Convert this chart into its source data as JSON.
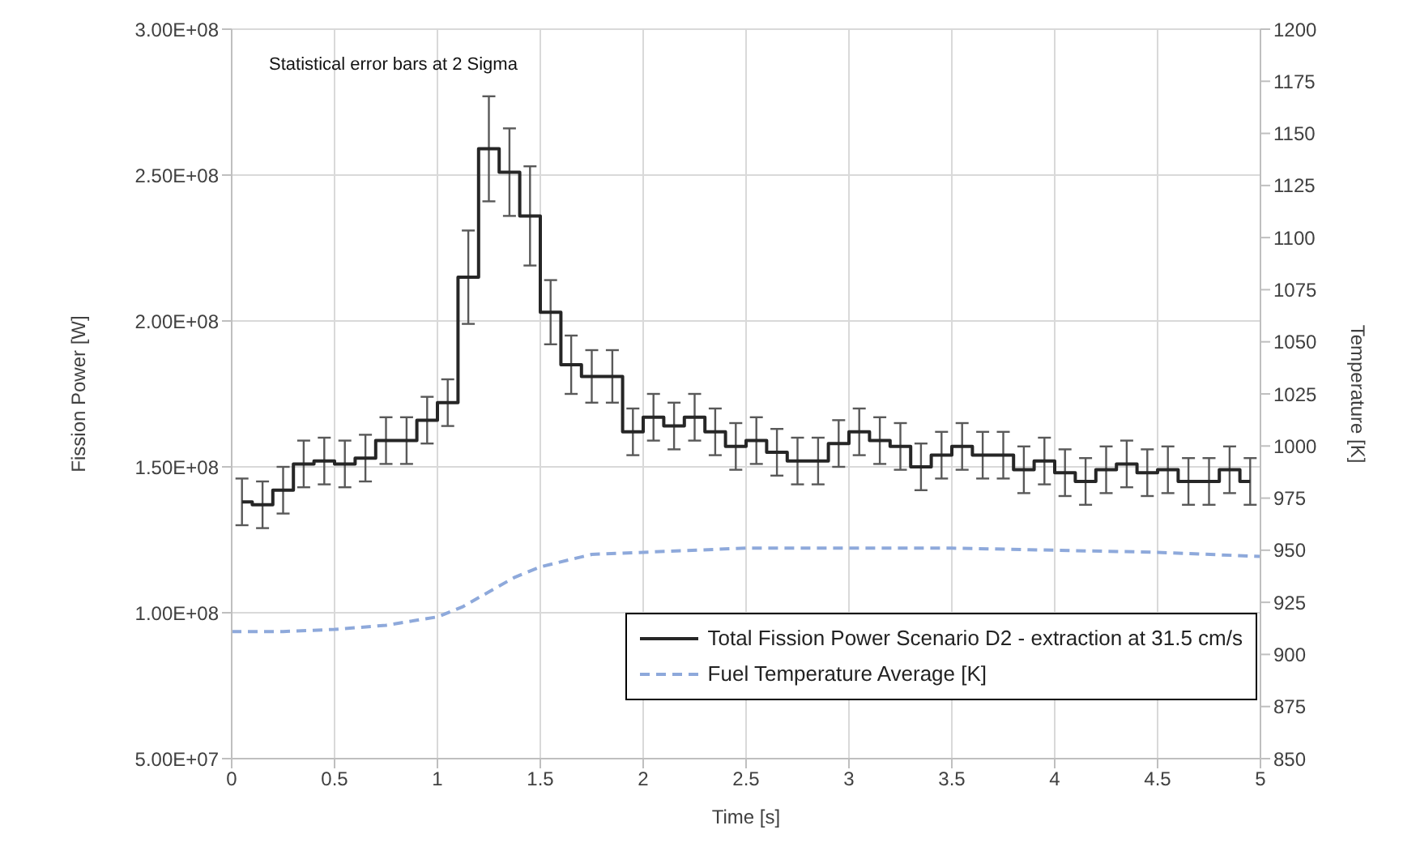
{
  "chart_data": {
    "type": "step",
    "xlabel": "Time [s]",
    "ylabel": "Fission Power [W]",
    "y2label": "Temperature [K]",
    "annotations": [
      "Statistical error bars at 2 Sigma"
    ],
    "x": [
      0.05,
      0.15,
      0.25,
      0.35,
      0.45,
      0.55,
      0.65,
      0.75,
      0.85,
      0.95,
      1.05,
      1.15,
      1.25,
      1.35,
      1.45,
      1.55,
      1.65,
      1.75,
      1.85,
      1.95,
      2.05,
      2.15,
      2.25,
      2.35,
      2.45,
      2.55,
      2.65,
      2.75,
      2.85,
      2.95,
      3.05,
      3.15,
      3.25,
      3.35,
      3.45,
      3.55,
      3.65,
      3.75,
      3.85,
      3.95,
      4.05,
      4.15,
      4.25,
      4.35,
      4.45,
      4.55,
      4.65,
      4.75,
      4.85,
      4.95
    ],
    "series": [
      {
        "name": "Total Fission Power Scenario D2 - extraction at 31.5 cm/s",
        "color": "#262626",
        "values": [
          138000000,
          137000000,
          142000000,
          151000000,
          152000000,
          151000000,
          153000000,
          159000000,
          159000000,
          166000000,
          172000000,
          215000000,
          259000000,
          251000000,
          236000000,
          203000000,
          185000000,
          181000000,
          181000000,
          162000000,
          167000000,
          164000000,
          167000000,
          162000000,
          157000000,
          159000000,
          155000000,
          152000000,
          152000000,
          158000000,
          162000000,
          159000000,
          157000000,
          150000000,
          154000000,
          157000000,
          154000000,
          154000000,
          149000000,
          152000000,
          148000000,
          145000000,
          149000000,
          151000000,
          148000000,
          149000000,
          145000000,
          145000000,
          149000000,
          145000000
        ],
        "errors": [
          8000000,
          8000000,
          8000000,
          8000000,
          8000000,
          8000000,
          8000000,
          8000000,
          8000000,
          8000000,
          8000000,
          16000000,
          18000000,
          15000000,
          17000000,
          11000000,
          10000000,
          9000000,
          9000000,
          8000000,
          8000000,
          8000000,
          8000000,
          8000000,
          8000000,
          8000000,
          8000000,
          8000000,
          8000000,
          8000000,
          8000000,
          8000000,
          8000000,
          8000000,
          8000000,
          8000000,
          8000000,
          8000000,
          8000000,
          8000000,
          8000000,
          8000000,
          8000000,
          8000000,
          8000000,
          8000000,
          8000000,
          8000000,
          8000000,
          8000000
        ]
      },
      {
        "name": "Fuel Temperature Average [K]",
        "type": "line",
        "axis": "y2",
        "color": "#8ea9db",
        "line_style": "dashed",
        "x": [
          0,
          0.25,
          0.5,
          0.75,
          1,
          1.125,
          1.25,
          1.375,
          1.5,
          1.75,
          2,
          2.5,
          3,
          3.5,
          4,
          4.5,
          5
        ],
        "values": [
          911,
          911,
          912,
          914,
          918,
          923,
          930,
          937,
          942,
          948,
          949,
          951,
          951,
          951,
          950,
          949,
          947
        ]
      }
    ],
    "xlim": [
      0,
      5
    ],
    "xticks": [
      0,
      0.5,
      1,
      1.5,
      2,
      2.5,
      3,
      3.5,
      4,
      4.5,
      5
    ],
    "ylim": [
      50000000,
      300000000
    ],
    "yticks": [
      {
        "value": 50000000,
        "label": "5.00E+07"
      },
      {
        "value": 100000000,
        "label": "1.00E+08"
      },
      {
        "value": 150000000,
        "label": "1.50E+08"
      },
      {
        "value": 200000000,
        "label": "2.00E+08"
      },
      {
        "value": 250000000,
        "label": "2.50E+08"
      },
      {
        "value": 300000000,
        "label": "3.00E+08"
      }
    ],
    "y2lim": [
      850,
      1200
    ],
    "y2ticks": [
      850,
      875,
      900,
      925,
      950,
      975,
      1000,
      1025,
      1050,
      1075,
      1100,
      1125,
      1150,
      1175,
      1200
    ],
    "grid": true,
    "legend": "bottom right",
    "marker": "none"
  }
}
